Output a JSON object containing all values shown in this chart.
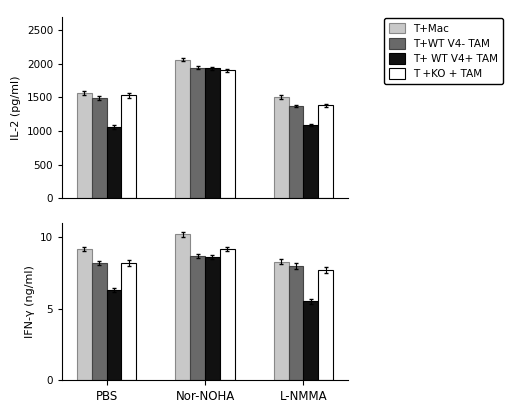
{
  "groups": [
    "PBS",
    "Nor-NOHA",
    "L-NMMA"
  ],
  "series_labels": [
    "T+Mac",
    "T+WT V4- TAM",
    "T+ WT V4+ TAM",
    "T +KO + TAM"
  ],
  "series_colors": [
    "#c8c8c8",
    "#696969",
    "#111111",
    "#ffffff"
  ],
  "series_edgecolors": [
    "#888888",
    "#444444",
    "#000000",
    "#000000"
  ],
  "il2_values": [
    [
      1570,
      1490,
      1060,
      1530
    ],
    [
      2060,
      1940,
      1930,
      1900
    ],
    [
      1500,
      1370,
      1090,
      1380
    ]
  ],
  "il2_errors": [
    [
      30,
      25,
      30,
      40
    ],
    [
      25,
      20,
      20,
      25
    ],
    [
      30,
      20,
      20,
      20
    ]
  ],
  "il2_ylabel": "IL-2 (pg/ml)",
  "il2_ylim": [
    0,
    2700
  ],
  "il2_yticks": [
    0,
    500,
    1000,
    1500,
    2000,
    2500
  ],
  "ifng_values": [
    [
      9.2,
      8.2,
      6.3,
      8.2
    ],
    [
      10.2,
      8.7,
      8.6,
      9.2
    ],
    [
      8.3,
      8.0,
      5.5,
      7.7
    ]
  ],
  "ifng_errors": [
    [
      0.15,
      0.15,
      0.15,
      0.2
    ],
    [
      0.15,
      0.15,
      0.15,
      0.15
    ],
    [
      0.15,
      0.2,
      0.2,
      0.2
    ]
  ],
  "ifng_ylabel": "IFN-γ (ng/ml)",
  "ifng_ylim": [
    0,
    11
  ],
  "ifng_yticks": [
    0,
    5,
    10
  ],
  "xlabel_groups": [
    "PBS",
    "Nor-NOHA",
    "L-NMMA"
  ],
  "bar_width": 0.15,
  "figsize": [
    5.19,
    4.13
  ],
  "dpi": 100
}
